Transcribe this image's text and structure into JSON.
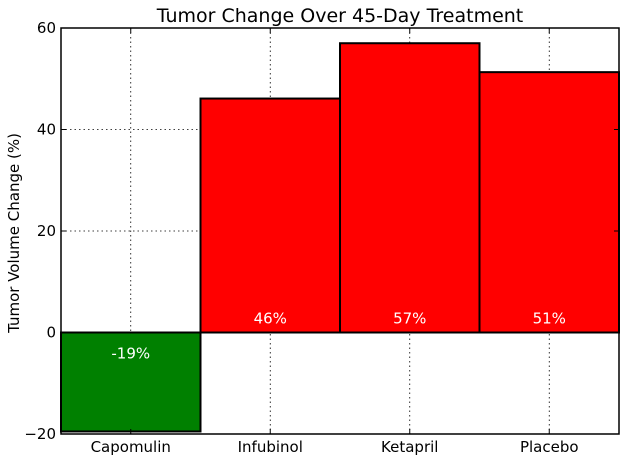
{
  "chart_data": {
    "type": "bar",
    "title": "Tumor Change Over 45-Day Treatment",
    "xlabel": "",
    "ylabel": "Tumor Volume Change (%)",
    "ylim": [
      -20,
      60
    ],
    "yticks": [
      -20,
      0,
      20,
      40,
      60
    ],
    "grid": true,
    "categories": [
      "Capomulin",
      "Infubinol",
      "Ketapril",
      "Placebo"
    ],
    "values": [
      -19.5,
      46.1,
      57.0,
      51.3
    ],
    "value_labels": [
      "-19%",
      "46%",
      "57%",
      "51%"
    ],
    "colors": {
      "negative": "#008000",
      "positive": "#ff0000",
      "label_text": "#ffffff"
    }
  }
}
